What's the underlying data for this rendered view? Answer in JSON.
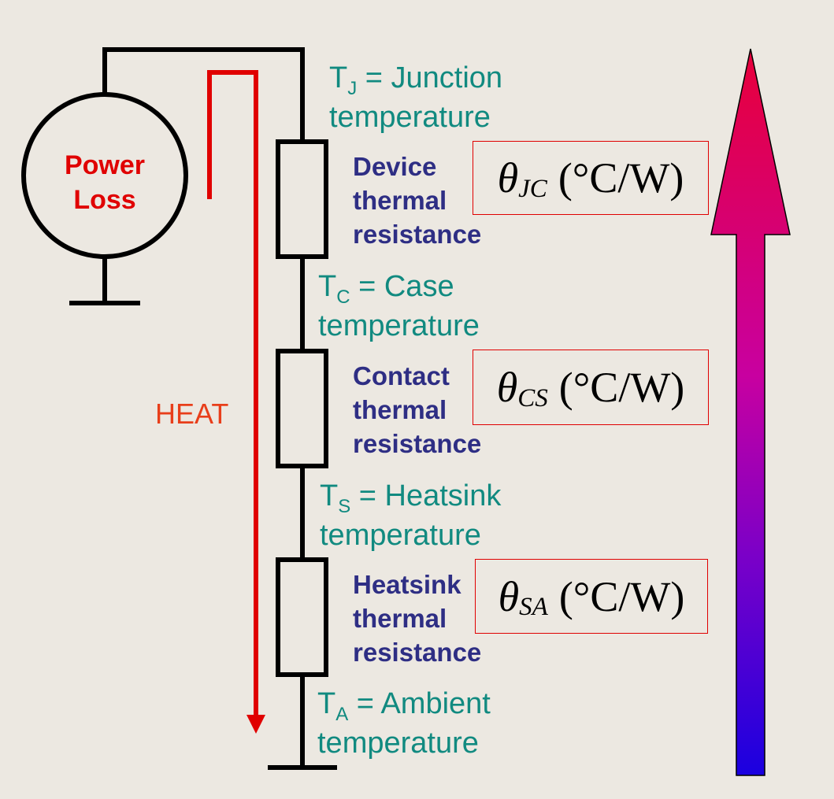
{
  "source": {
    "line1": "Power",
    "line2": "Loss"
  },
  "heat_label": "HEAT",
  "temperatures": [
    {
      "symbol": "T",
      "sub": "J",
      "rest": " = Junction",
      "line2": "temperature"
    },
    {
      "symbol": "T",
      "sub": "C",
      "rest": " = Case",
      "line2": "temperature"
    },
    {
      "symbol": "T",
      "sub": "S",
      "rest": " = Heatsink",
      "line2": "temperature"
    },
    {
      "symbol": "T",
      "sub": "A",
      "rest": " = Ambient",
      "line2": "temperature"
    }
  ],
  "resistances": [
    {
      "l1": "Device",
      "l2": "thermal",
      "l3": "resistance",
      "theta": "θ",
      "sub": "JC",
      "unit": "(°C/W)"
    },
    {
      "l1": "Contact",
      "l2": "thermal",
      "l3": "resistance",
      "theta": "θ",
      "sub": "CS",
      "unit": "(°C/W)"
    },
    {
      "l1": "Heatsink",
      "l2": "thermal",
      "l3": "resistance",
      "theta": "θ",
      "sub": "SA",
      "unit": "(°C/W)"
    }
  ],
  "colors": {
    "background": "#ECE8E1",
    "circuit": "#000000",
    "heat": "#E00000",
    "temperature_text": "#118A80",
    "resistance_text": "#2E2E84",
    "arrow_top": "#E8003A",
    "arrow_bottom": "#1A00E0"
  }
}
